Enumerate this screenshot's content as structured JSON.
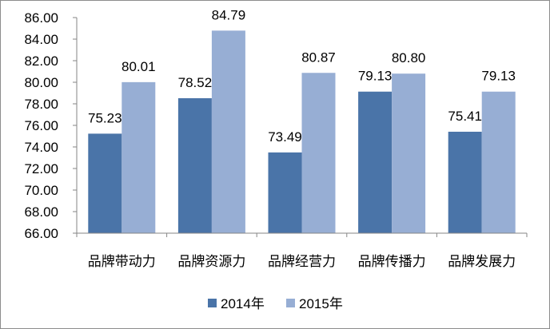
{
  "chart_data": {
    "type": "bar",
    "categories": [
      "品牌带动力",
      "品牌资源力",
      "品牌经营力",
      "品牌传播力",
      "品牌发展力"
    ],
    "series": [
      {
        "name": "2014年",
        "values": [
          75.23,
          78.52,
          73.49,
          79.13,
          75.41
        ],
        "color": "#4a74a8"
      },
      {
        "name": "2015年",
        "values": [
          80.01,
          84.79,
          80.87,
          80.8,
          79.13
        ],
        "color": "#97aed4"
      }
    ],
    "ylim": [
      66,
      86
    ],
    "yticks": [
      "66.00",
      "68.00",
      "70.00",
      "72.00",
      "74.00",
      "76.00",
      "78.00",
      "80.00",
      "82.00",
      "84.00",
      "86.00"
    ],
    "data_labels": [
      [
        "75.23",
        "78.52",
        "73.49",
        "79.13",
        "75.41"
      ],
      [
        "80.01",
        "84.79",
        "80.87",
        "80.80",
        "79.13"
      ]
    ],
    "grid": false,
    "legend_position": "bottom"
  }
}
